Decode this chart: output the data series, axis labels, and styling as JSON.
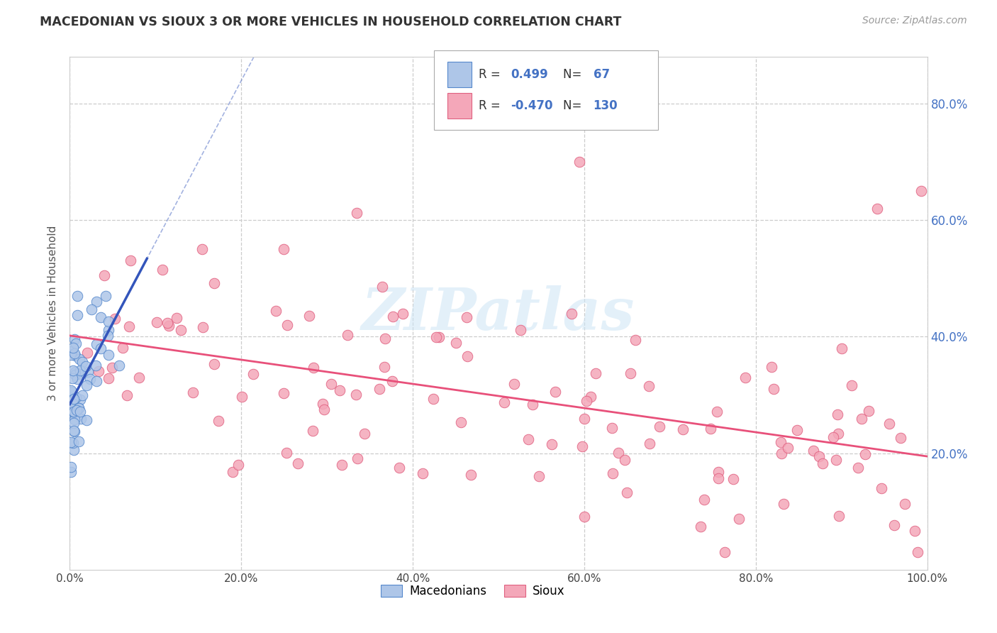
{
  "title": "MACEDONIAN VS SIOUX 3 OR MORE VEHICLES IN HOUSEHOLD CORRELATION CHART",
  "source": "Source: ZipAtlas.com",
  "ylabel": "3 or more Vehicles in Household",
  "xlim": [
    0.0,
    1.0
  ],
  "ylim": [
    0.0,
    0.88
  ],
  "xtick_labels": [
    "0.0%",
    "20.0%",
    "40.0%",
    "60.0%",
    "80.0%",
    "100.0%"
  ],
  "xtick_vals": [
    0.0,
    0.2,
    0.4,
    0.6,
    0.8,
    1.0
  ],
  "ytick_labels": [
    "20.0%",
    "40.0%",
    "60.0%",
    "80.0%"
  ],
  "ytick_vals": [
    0.2,
    0.4,
    0.6,
    0.8
  ],
  "macedonian_color": "#aec6e8",
  "sioux_color": "#f4a7b9",
  "macedonian_edge_color": "#5588cc",
  "sioux_edge_color": "#e06080",
  "macedonian_trend_color": "#3355bb",
  "sioux_trend_color": "#e8507a",
  "legend_R_macedonian": "0.499",
  "legend_N_macedonian": "67",
  "legend_R_sioux": "-0.470",
  "legend_N_sioux": "130",
  "watermark": "ZIPatlas",
  "grid_color": "#cccccc",
  "title_color": "#333333",
  "source_color": "#999999",
  "ylabel_color": "#555555",
  "right_tick_color": "#4472c4",
  "legend_text_color": "#333333",
  "legend_value_color": "#4472c4"
}
